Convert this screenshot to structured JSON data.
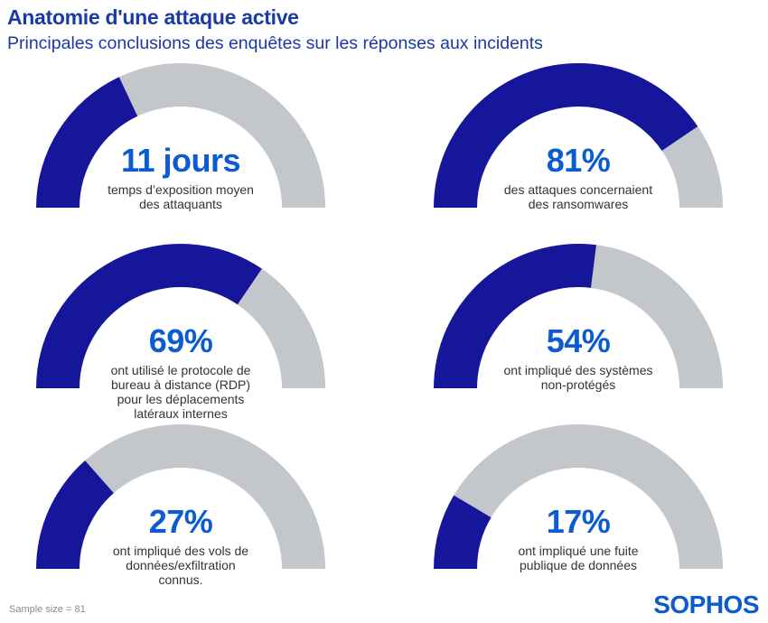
{
  "header": {
    "title": "Anatomie d'une attaque active",
    "subtitle": "Principales conclusions des enquêtes sur les réponses aux incidents"
  },
  "colors": {
    "fill": "#15169a",
    "track": "#c3c6ca",
    "value_text": "#0b5bd3",
    "title": "#1a3aa6"
  },
  "chart_data": {
    "type": "gauge",
    "gauges": [
      {
        "value": "11 jours",
        "fill_fraction": 0.36,
        "description": [
          "temps d’exposition moyen",
          "des attaquants"
        ]
      },
      {
        "value": "81%",
        "fill_fraction": 0.81,
        "description": [
          "des attaques concernaient",
          "des ransomwares"
        ]
      },
      {
        "value": "69%",
        "fill_fraction": 0.69,
        "description": [
          "ont utilisé le protocole de",
          "bureau à distance (RDP)",
          "pour les déplacements",
          "latéraux internes"
        ]
      },
      {
        "value": "54%",
        "fill_fraction": 0.54,
        "description": [
          "ont impliqué des systèmes",
          "non-protégés"
        ]
      },
      {
        "value": "27%",
        "fill_fraction": 0.27,
        "description": [
          "ont impliqué des vols de",
          "données/exfiltration",
          "connus."
        ]
      },
      {
        "value": "17%",
        "fill_fraction": 0.17,
        "description": [
          "ont impliqué une fuite",
          "publique de données"
        ]
      }
    ]
  },
  "footer": {
    "sample_size": "Sample size = 81",
    "logo": "SOPHOS"
  }
}
